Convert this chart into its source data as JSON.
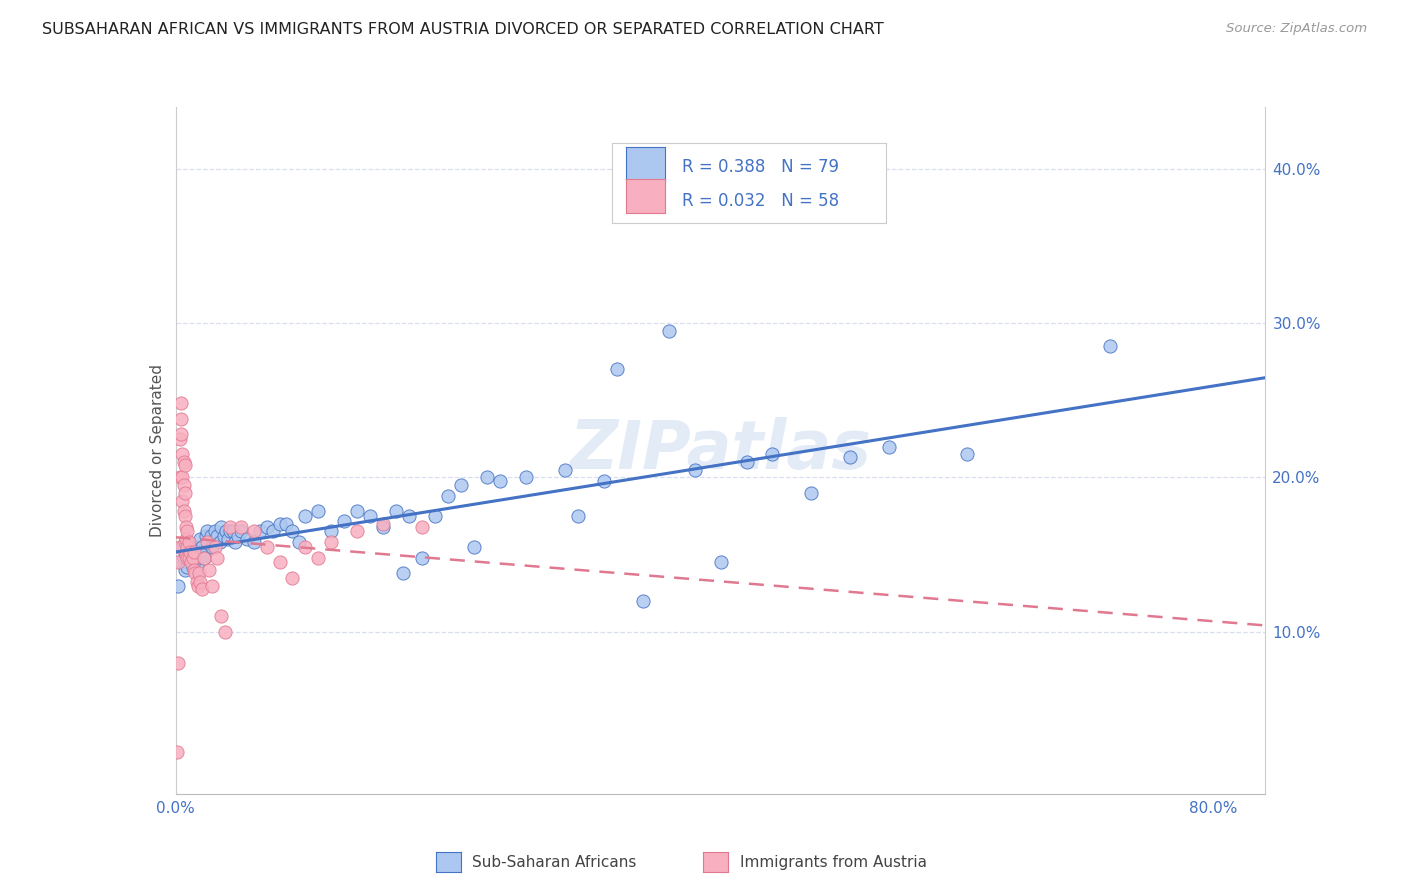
{
  "title": "SUBSAHARAN AFRICAN VS IMMIGRANTS FROM AUSTRIA DIVORCED OR SEPARATED CORRELATION CHART",
  "source": "Source: ZipAtlas.com",
  "ylabel": "Divorced or Separated",
  "xlim": [
    0.0,
    0.84
  ],
  "ylim": [
    -0.005,
    0.44
  ],
  "x_ticks": [
    0.0,
    0.2,
    0.4,
    0.6,
    0.8
  ],
  "x_tick_labels": [
    "0.0%",
    "",
    "",
    "",
    "80.0%"
  ],
  "y_ticks": [
    0.1,
    0.2,
    0.3,
    0.4
  ],
  "y_tick_labels": [
    "10.0%",
    "20.0%",
    "30.0%",
    "40.0%"
  ],
  "legend_series1": "Sub-Saharan Africans",
  "legend_series2": "Immigrants from Austria",
  "color_blue": "#adc8f0",
  "color_pink": "#f8b0c0",
  "line_blue": "#4472c4",
  "line_pink": "#e07890",
  "background": "#ffffff",
  "grid_color": "#d8dff0",
  "blue_x": [
    0.002,
    0.004,
    0.005,
    0.006,
    0.007,
    0.008,
    0.009,
    0.01,
    0.011,
    0.012,
    0.013,
    0.014,
    0.015,
    0.016,
    0.017,
    0.018,
    0.019,
    0.02,
    0.021,
    0.022,
    0.023,
    0.024,
    0.025,
    0.027,
    0.028,
    0.03,
    0.032,
    0.034,
    0.035,
    0.037,
    0.039,
    0.04,
    0.042,
    0.044,
    0.046,
    0.048,
    0.05,
    0.055,
    0.06,
    0.065,
    0.07,
    0.075,
    0.08,
    0.085,
    0.09,
    0.095,
    0.1,
    0.11,
    0.12,
    0.13,
    0.14,
    0.15,
    0.16,
    0.17,
    0.175,
    0.18,
    0.19,
    0.2,
    0.21,
    0.22,
    0.23,
    0.24,
    0.25,
    0.27,
    0.3,
    0.31,
    0.33,
    0.34,
    0.36,
    0.38,
    0.4,
    0.42,
    0.44,
    0.46,
    0.49,
    0.52,
    0.55,
    0.61,
    0.72
  ],
  "blue_y": [
    0.13,
    0.145,
    0.155,
    0.148,
    0.14,
    0.15,
    0.142,
    0.155,
    0.148,
    0.152,
    0.142,
    0.145,
    0.15,
    0.143,
    0.148,
    0.155,
    0.16,
    0.155,
    0.15,
    0.148,
    0.162,
    0.165,
    0.158,
    0.162,
    0.155,
    0.165,
    0.162,
    0.158,
    0.168,
    0.162,
    0.165,
    0.16,
    0.165,
    0.165,
    0.158,
    0.162,
    0.165,
    0.16,
    0.158,
    0.165,
    0.168,
    0.165,
    0.17,
    0.17,
    0.165,
    0.158,
    0.175,
    0.178,
    0.165,
    0.172,
    0.178,
    0.175,
    0.168,
    0.178,
    0.138,
    0.175,
    0.148,
    0.175,
    0.188,
    0.195,
    0.155,
    0.2,
    0.198,
    0.2,
    0.205,
    0.175,
    0.198,
    0.27,
    0.12,
    0.295,
    0.205,
    0.145,
    0.21,
    0.215,
    0.19,
    0.213,
    0.22,
    0.215,
    0.285
  ],
  "pink_x": [
    0.001,
    0.002,
    0.003,
    0.003,
    0.003,
    0.004,
    0.004,
    0.004,
    0.005,
    0.005,
    0.005,
    0.006,
    0.006,
    0.006,
    0.007,
    0.007,
    0.007,
    0.007,
    0.008,
    0.008,
    0.008,
    0.009,
    0.009,
    0.009,
    0.01,
    0.01,
    0.011,
    0.012,
    0.013,
    0.014,
    0.014,
    0.015,
    0.016,
    0.017,
    0.018,
    0.019,
    0.02,
    0.022,
    0.024,
    0.026,
    0.028,
    0.03,
    0.032,
    0.035,
    0.038,
    0.042,
    0.05,
    0.06,
    0.07,
    0.08,
    0.09,
    0.1,
    0.11,
    0.12,
    0.14,
    0.16,
    0.19,
    0.002
  ],
  "pink_y": [
    0.022,
    0.145,
    0.225,
    0.2,
    0.155,
    0.248,
    0.238,
    0.228,
    0.215,
    0.2,
    0.185,
    0.21,
    0.195,
    0.178,
    0.208,
    0.19,
    0.175,
    0.158,
    0.168,
    0.16,
    0.15,
    0.165,
    0.155,
    0.148,
    0.158,
    0.148,
    0.152,
    0.145,
    0.148,
    0.14,
    0.152,
    0.138,
    0.132,
    0.13,
    0.138,
    0.132,
    0.128,
    0.148,
    0.158,
    0.14,
    0.13,
    0.155,
    0.148,
    0.11,
    0.1,
    0.168,
    0.168,
    0.165,
    0.155,
    0.145,
    0.135,
    0.155,
    0.148,
    0.158,
    0.165,
    0.17,
    0.168,
    0.08
  ]
}
